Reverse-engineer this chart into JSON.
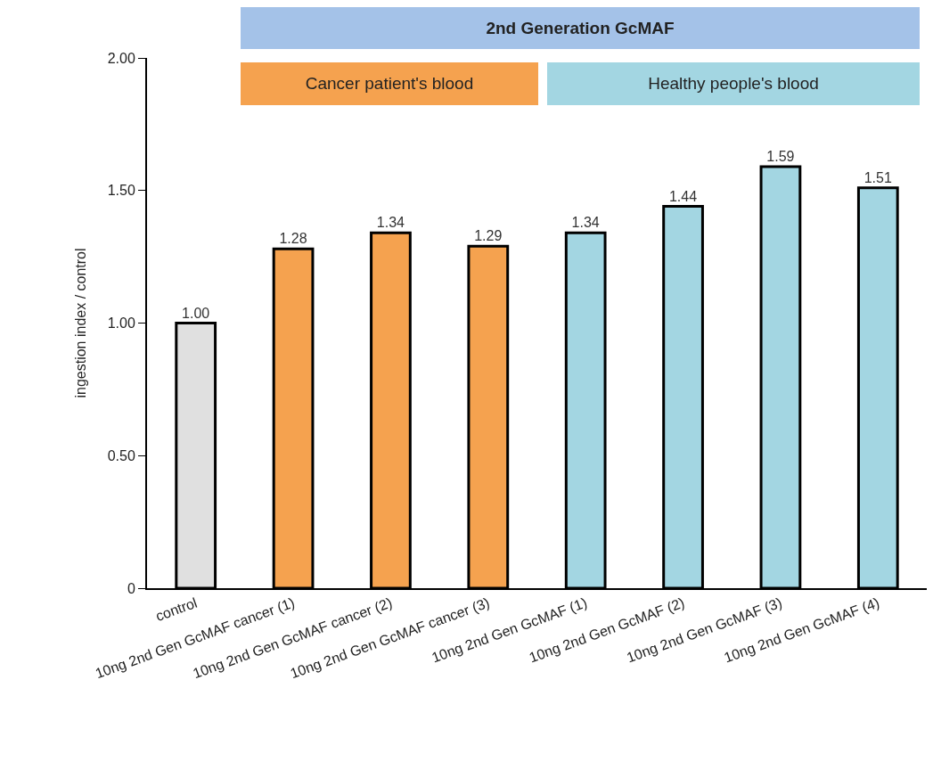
{
  "chart_data": {
    "type": "bar",
    "ylabel": "ingestion index / control",
    "categories": [
      "control",
      "10ng 2nd Gen GcMAF cancer (1)",
      "10ng 2nd Gen GcMAF cancer (2)",
      "10ng 2nd Gen GcMAF cancer (3)",
      "10ng 2nd Gen GcMAF (1)",
      "10ng 2nd Gen GcMAF (2)",
      "10ng 2nd Gen GcMAF (3)",
      "10ng 2nd Gen GcMAF (4)"
    ],
    "values": [
      1.0,
      1.28,
      1.34,
      1.29,
      1.34,
      1.44,
      1.59,
      1.51
    ],
    "value_labels": [
      "1.00",
      "1.28",
      "1.34",
      "1.29",
      "1.34",
      "1.44",
      "1.59",
      "1.51"
    ],
    "colors": [
      "#e0e0e0",
      "#f5a24f",
      "#f5a24f",
      "#f5a24f",
      "#a3d6e2",
      "#a3d6e2",
      "#a3d6e2",
      "#a3d6e2"
    ],
    "ylim": [
      0,
      2
    ],
    "yticks": [
      0,
      {
        "value": 0.5,
        "label": "0.50"
      },
      {
        "value": 1,
        "label": "1.00"
      },
      {
        "value": 1.5,
        "label": "1.50"
      },
      {
        "value": 2,
        "label": "2.00"
      }
    ],
    "annotations": [
      "2nd Generation GcMAF",
      "Cancer patient's blood",
      "Healthy people's blood"
    ]
  }
}
